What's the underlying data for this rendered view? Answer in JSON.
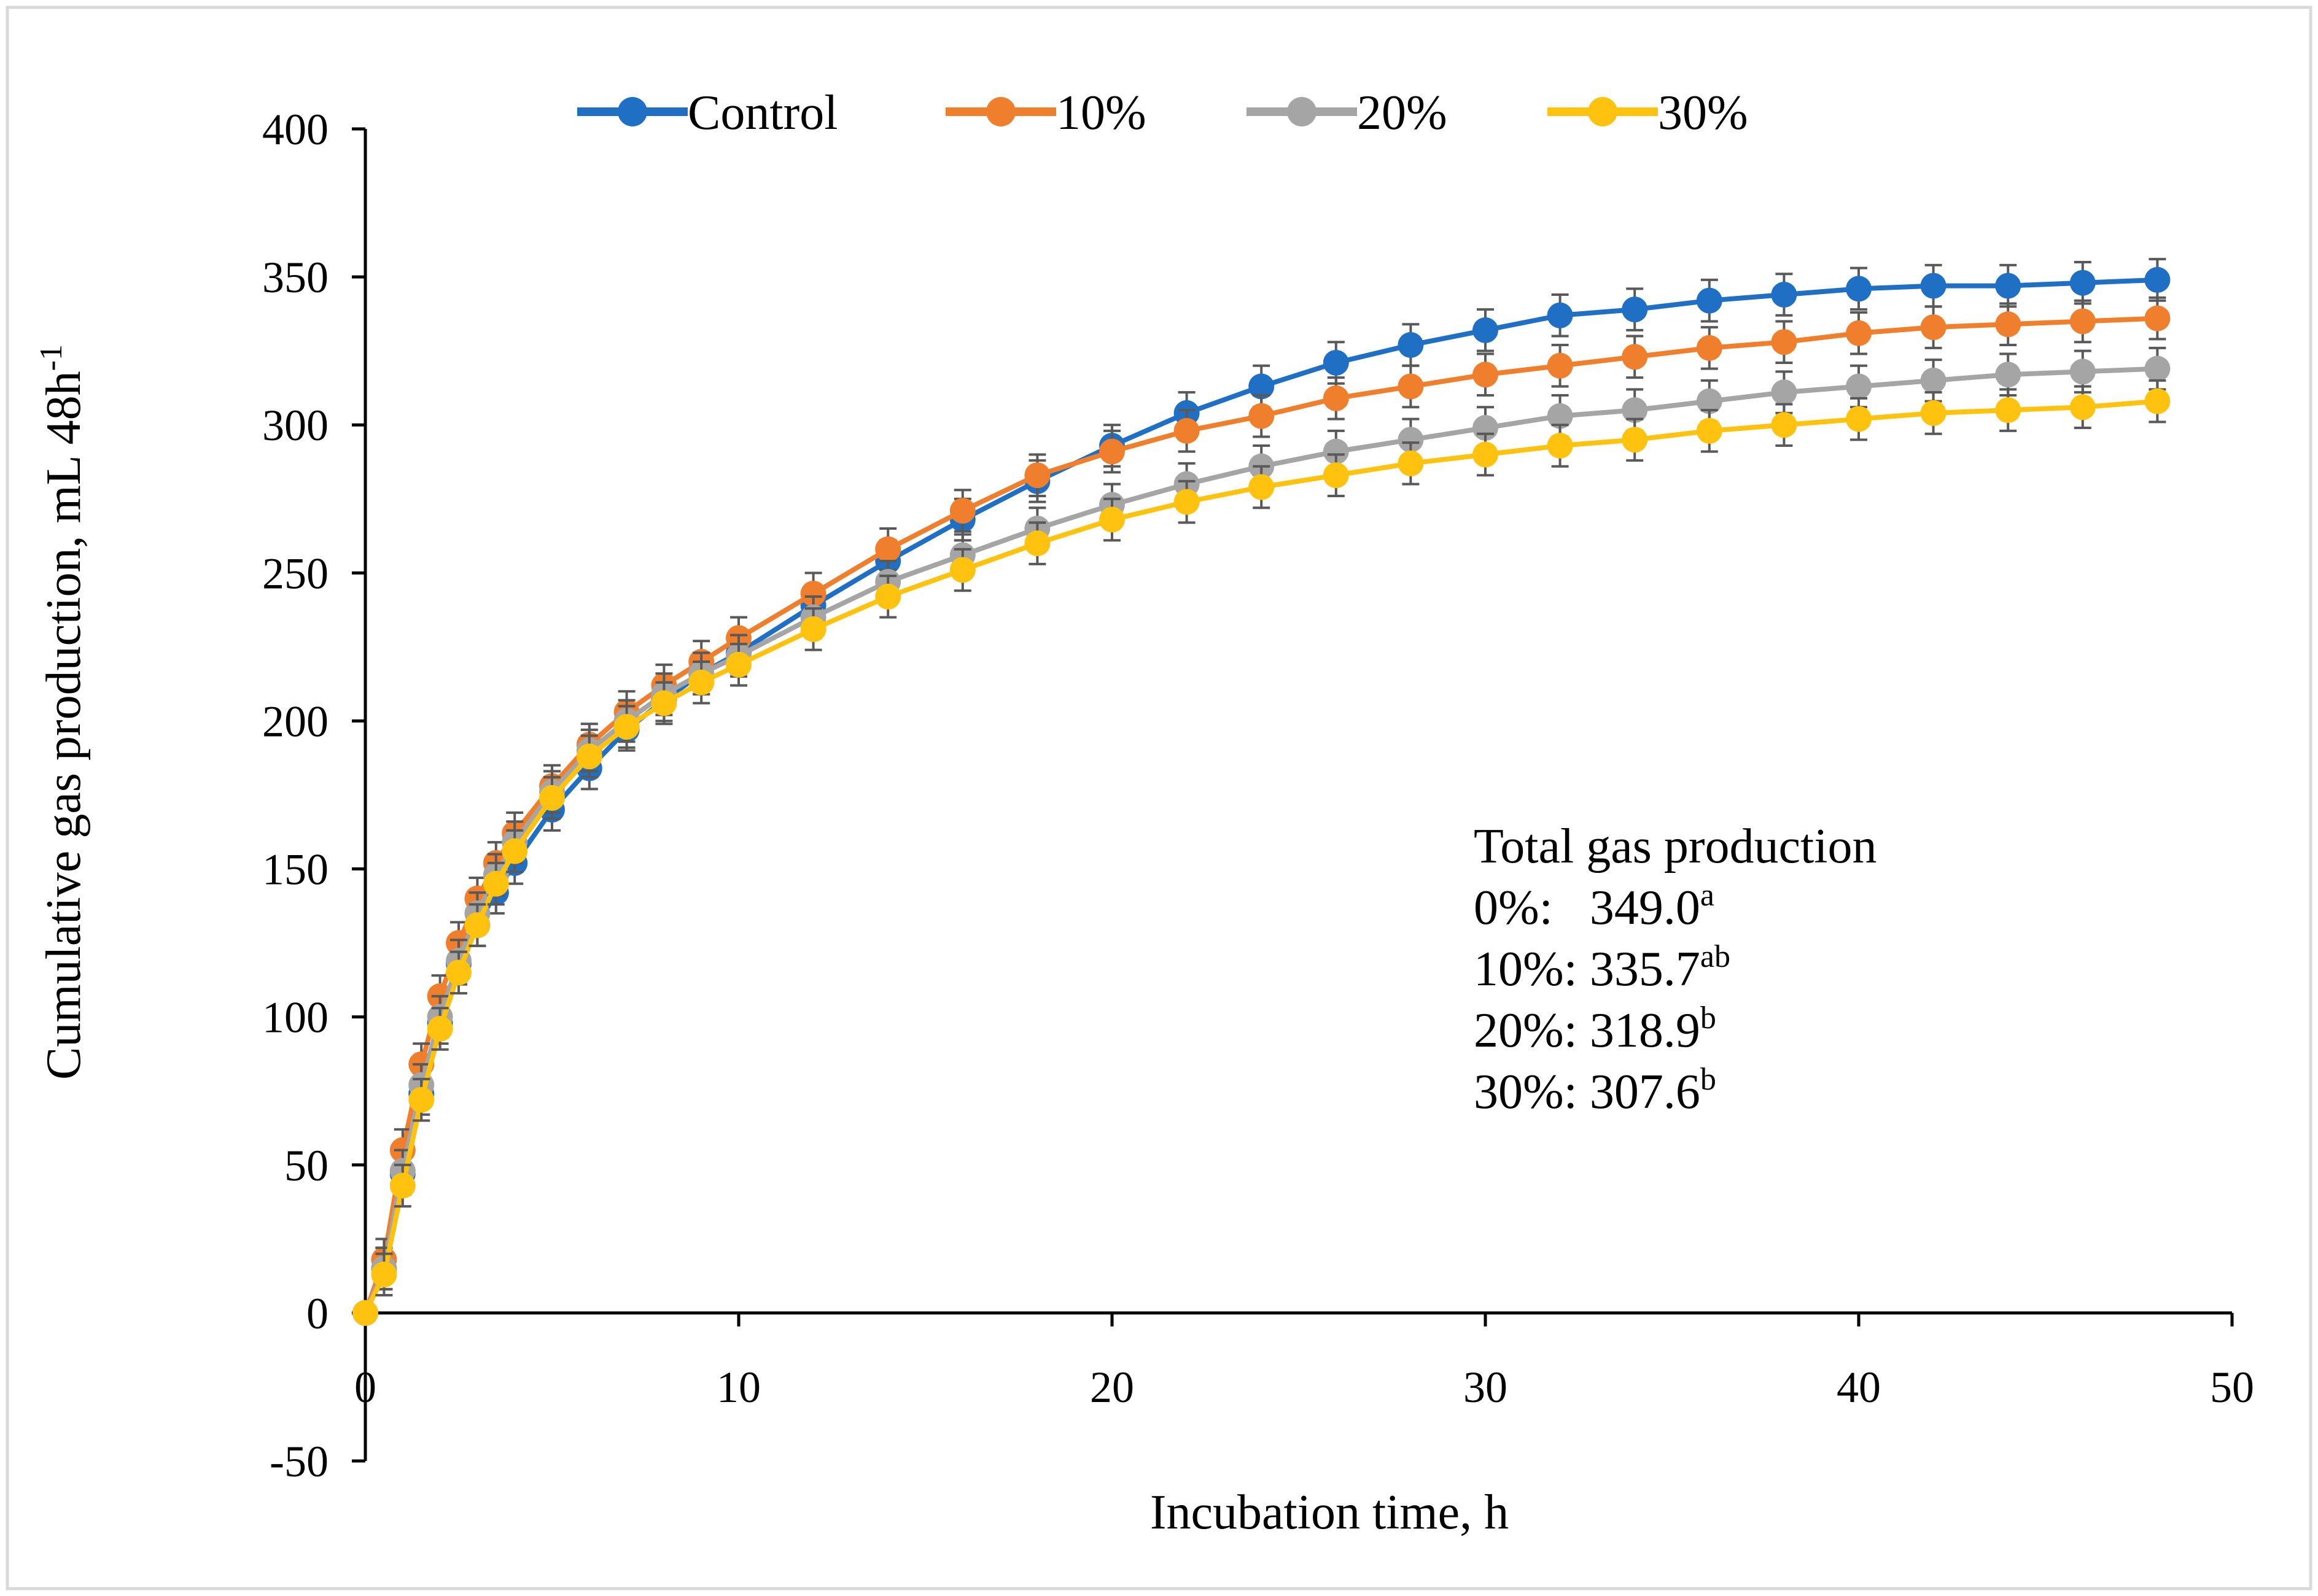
{
  "chart_data": {
    "type": "line",
    "xlabel": "Incubation time, h",
    "ylabel_main": "Cumulative gas production, mL 48h",
    "ylabel_sup": "-1",
    "xlim": [
      0,
      50
    ],
    "ylim": [
      -50,
      400
    ],
    "xticks": [
      0,
      10,
      20,
      30,
      40,
      50
    ],
    "yticks": [
      -50,
      0,
      50,
      100,
      150,
      200,
      250,
      300,
      350,
      400
    ],
    "grid": false,
    "legend_position": "top",
    "error_bar_color": "#595959",
    "series": [
      {
        "name": "Control",
        "color": "#1F6FC5",
        "x": [
          0,
          0.5,
          1,
          1.5,
          2,
          2.5,
          3,
          3.5,
          4,
          5,
          6,
          7,
          8,
          9,
          10,
          12,
          14,
          16,
          18,
          20,
          22,
          24,
          26,
          28,
          30,
          32,
          34,
          36,
          38,
          40,
          42,
          44,
          46,
          48
        ],
        "y": [
          0,
          15,
          47,
          74,
          98,
          118,
          131,
          142,
          152,
          170,
          184,
          197,
          207,
          216,
          223,
          239,
          254,
          268,
          281,
          293,
          304,
          313,
          321,
          327,
          332,
          337,
          339,
          342,
          344,
          346,
          347,
          347,
          348,
          349
        ],
        "err": 7
      },
      {
        "name": "10%",
        "color": "#F07F2D",
        "x": [
          0,
          0.5,
          1,
          1.5,
          2,
          2.5,
          3,
          3.5,
          4,
          5,
          6,
          7,
          8,
          9,
          10,
          12,
          14,
          16,
          18,
          20,
          22,
          24,
          26,
          28,
          30,
          32,
          34,
          36,
          38,
          40,
          42,
          44,
          46,
          48
        ],
        "y": [
          0,
          18,
          55,
          84,
          107,
          125,
          140,
          152,
          162,
          178,
          192,
          203,
          212,
          220,
          228,
          243,
          258,
          271,
          283,
          291,
          298,
          303,
          309,
          313,
          317,
          320,
          323,
          326,
          328,
          331,
          333,
          334,
          335,
          336
        ],
        "err": 7
      },
      {
        "name": "20%",
        "color": "#A5A5A5",
        "x": [
          0,
          0.5,
          1,
          1.5,
          2,
          2.5,
          3,
          3.5,
          4,
          5,
          6,
          7,
          8,
          9,
          10,
          12,
          14,
          16,
          18,
          20,
          22,
          24,
          26,
          28,
          30,
          32,
          34,
          36,
          38,
          40,
          42,
          44,
          46,
          48
        ],
        "y": [
          0,
          15,
          48,
          77,
          100,
          119,
          135,
          148,
          159,
          176,
          190,
          200,
          209,
          216,
          222,
          235,
          247,
          256,
          265,
          273,
          280,
          286,
          291,
          295,
          299,
          303,
          305,
          308,
          311,
          313,
          315,
          317,
          318,
          319
        ],
        "err": 7
      },
      {
        "name": "30%",
        "color": "#FFC20E",
        "x": [
          0,
          0.5,
          1,
          1.5,
          2,
          2.5,
          3,
          3.5,
          4,
          5,
          6,
          7,
          8,
          9,
          10,
          12,
          14,
          16,
          18,
          20,
          22,
          24,
          26,
          28,
          30,
          32,
          34,
          36,
          38,
          40,
          42,
          44,
          46,
          48
        ],
        "y": [
          0,
          13,
          43,
          72,
          96,
          115,
          131,
          145,
          156,
          174,
          188,
          198,
          206,
          213,
          219,
          231,
          242,
          251,
          260,
          268,
          274,
          279,
          283,
          287,
          290,
          293,
          295,
          298,
          300,
          302,
          304,
          305,
          306,
          308
        ],
        "err": 7
      }
    ]
  },
  "annotation": {
    "title": "Total gas production",
    "lines": [
      {
        "label": "0%:   349.0",
        "sup": "a"
      },
      {
        "label": "10%: 335.7",
        "sup": "ab"
      },
      {
        "label": "20%: 318.9",
        "sup": "b"
      },
      {
        "label": "30%: 307.6",
        "sup": "b"
      }
    ]
  }
}
